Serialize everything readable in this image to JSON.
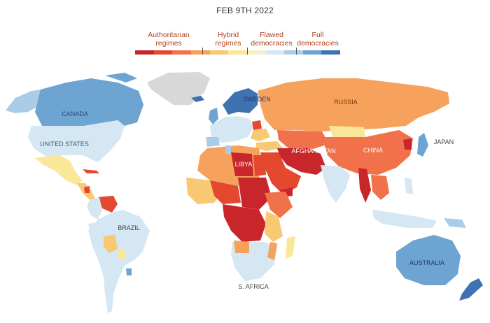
{
  "date": "FEB 9TH 2022",
  "legend": {
    "categories": [
      {
        "label": "Authoritarian regimes",
        "line1": "Authoritarian",
        "line2": "regimes"
      },
      {
        "label": "Hybrid regimes",
        "line1": "Hybrid",
        "line2": "regimes"
      },
      {
        "label": "Flawed democracies",
        "line1": "Flawed",
        "line2": "democracies"
      },
      {
        "label": "Full democracies",
        "line1": "Full",
        "line2": "democracies"
      }
    ],
    "colors": [
      "#c8262a",
      "#e4492f",
      "#f1714a",
      "#f6a25c",
      "#f9c873",
      "#fbe79a",
      "#f4f1c8",
      "#d4e7f2",
      "#a9cde6",
      "#6ea4d2",
      "#3f72b3"
    ]
  },
  "labels": {
    "canada": "CANADA",
    "us": "UNITED STATES",
    "brazil": "BRAZIL",
    "russia": "RUSSIA",
    "china": "CHINA",
    "japan": "JAPAN",
    "libya": "LIBYA",
    "afghanistan": "AFGHANISTAN",
    "sweden": "SWEDEN",
    "safrica": "S. AFRICA",
    "australia": "AUSTRALIA"
  }
}
